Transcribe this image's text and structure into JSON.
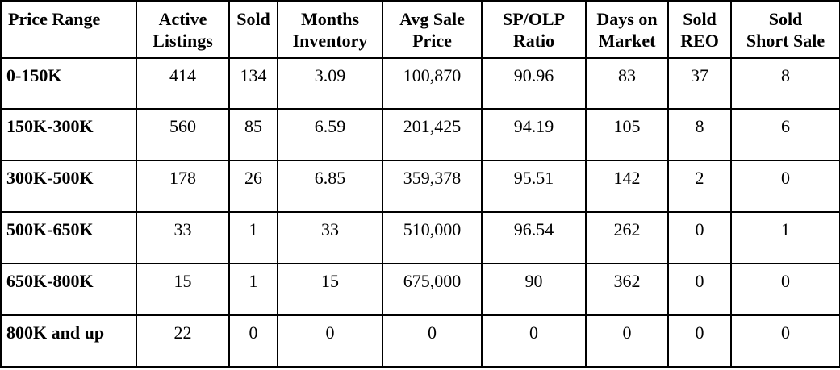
{
  "table": {
    "headers": [
      [
        "Price Range",
        ""
      ],
      [
        "Active",
        "Listings"
      ],
      [
        "Sold",
        ""
      ],
      [
        "Months",
        "Inventory"
      ],
      [
        "Avg Sale",
        "Price"
      ],
      [
        "SP/OLP",
        "Ratio"
      ],
      [
        "Days on",
        "Market"
      ],
      [
        "Sold",
        "REO"
      ],
      [
        "Sold",
        "Short Sale"
      ]
    ],
    "rows": [
      [
        "0-150K",
        "414",
        "134",
        "3.09",
        "100,870",
        "90.96",
        "83",
        "37",
        "8"
      ],
      [
        "150K-300K",
        "560",
        "85",
        "6.59",
        "201,425",
        "94.19",
        "105",
        "8",
        "6"
      ],
      [
        "300K-500K",
        "178",
        "26",
        "6.85",
        "359,378",
        "95.51",
        "142",
        "2",
        "0"
      ],
      [
        "500K-650K",
        "33",
        "1",
        "33",
        "510,000",
        "96.54",
        "262",
        "0",
        "1"
      ],
      [
        "650K-800K",
        "15",
        "1",
        "15",
        "675,000",
        "90",
        "362",
        "0",
        "0"
      ],
      [
        "800K and up",
        "22",
        "0",
        "0",
        "0",
        "0",
        "0",
        "0",
        "0"
      ]
    ]
  }
}
